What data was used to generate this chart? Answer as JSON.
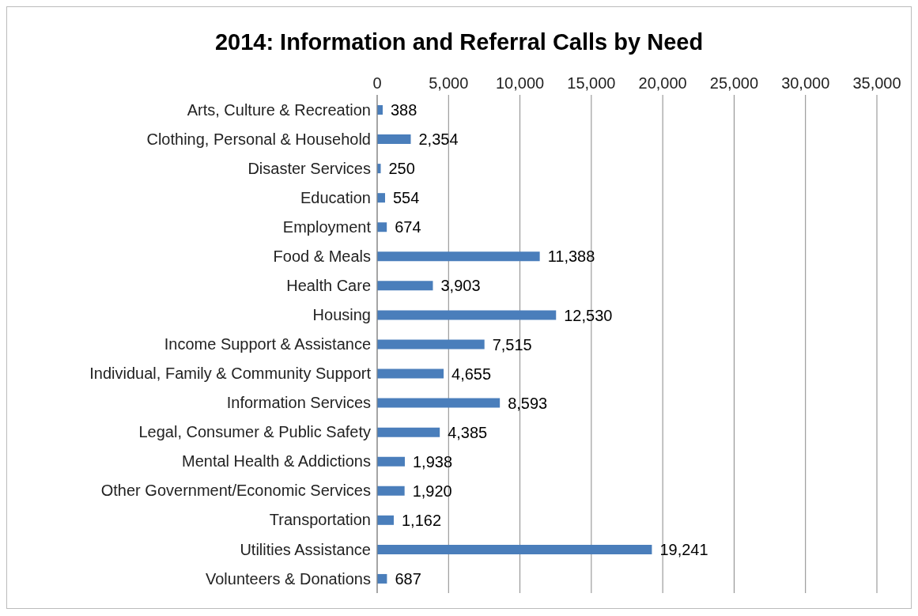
{
  "chart_data": {
    "type": "bar",
    "orientation": "horizontal",
    "title": "2014: Information and Referral Calls by Need",
    "categories": [
      "Arts, Culture & Recreation",
      "Clothing, Personal & Household",
      "Disaster Services",
      "Education",
      "Employment",
      "Food & Meals",
      "Health Care",
      "Housing",
      "Income Support & Assistance",
      "Individual, Family & Community Support",
      "Information Services",
      "Legal, Consumer & Public Safety",
      "Mental Health & Addictions",
      "Other Government/Economic Services",
      "Transportation",
      "Utilities Assistance",
      "Volunteers & Donations"
    ],
    "values": [
      388,
      2354,
      250,
      554,
      674,
      11388,
      3903,
      12530,
      7515,
      4655,
      8593,
      4385,
      1938,
      1920,
      1162,
      19241,
      687
    ],
    "value_labels": [
      "388",
      "2,354",
      "250",
      "554",
      "674",
      "11,388",
      "3,903",
      "12,530",
      "7,515",
      "4,655",
      "8,593",
      "4,385",
      "1,938",
      "1,920",
      "1,162",
      "19,241",
      "687"
    ],
    "color": "#4a7ebb",
    "xlim": [
      0,
      35000
    ],
    "xticks": [
      0,
      {
        "value": 5000,
        "label": "5,000"
      },
      {
        "value": 10000,
        "label": "10,000"
      },
      {
        "value": 15000,
        "label": "15,000"
      },
      {
        "value": 20000,
        "label": "20,000"
      },
      {
        "value": 25000,
        "label": "25,000"
      },
      {
        "value": 30000,
        "label": "30,000"
      },
      {
        "value": 35000,
        "label": "35,000"
      }
    ],
    "grid": "x"
  }
}
